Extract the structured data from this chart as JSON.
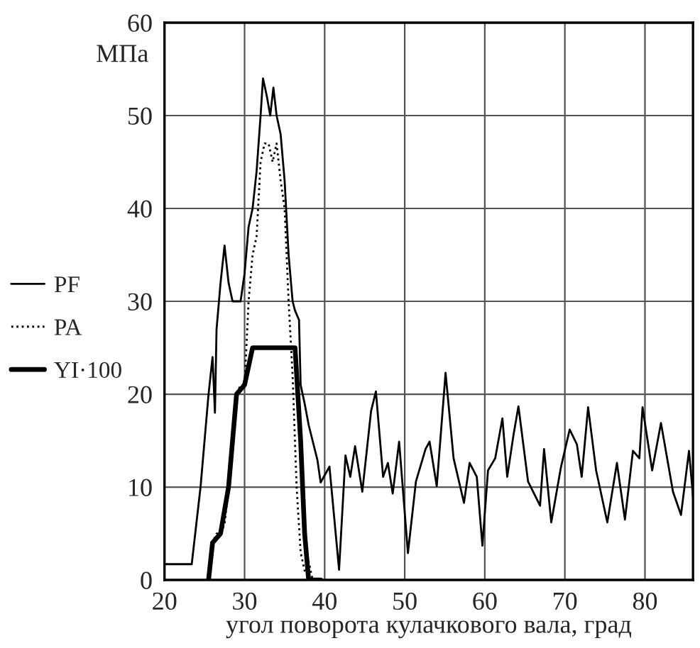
{
  "chart_data": {
    "type": "line",
    "xlabel": "угол поворота кулачкового вала, град",
    "ylabel": "МПа",
    "xlim": [
      20,
      86
    ],
    "xticks": [
      20,
      30,
      40,
      50,
      60,
      70,
      80
    ],
    "ylim": [
      0,
      60
    ],
    "yticks": [
      0,
      10,
      20,
      30,
      40,
      50,
      60
    ],
    "grid": true,
    "legend": "left",
    "series": [
      {
        "name": "PF",
        "color": "#000000",
        "line_style": "solid",
        "x": [
          20,
          23.4,
          24.5,
          25.5,
          26,
          26.3,
          26.5,
          27,
          27.5,
          28,
          28.5,
          29.5,
          30,
          30.5,
          31,
          31.5,
          32,
          32.3,
          32.8,
          33.2,
          33.6,
          34,
          34.5,
          35,
          35.5,
          36,
          36.3,
          36.8,
          37,
          37.5,
          38,
          39.1,
          39.5,
          40.6,
          41.8,
          42.6,
          43.2,
          43.8,
          44.7,
          45.8,
          46.4,
          47.3,
          47.9,
          48.5,
          49.3,
          50.4,
          51.4,
          52.6,
          53.1,
          54,
          55.1,
          56.1,
          57.4,
          58.1,
          59,
          59.7,
          60.4,
          61.3,
          62.2,
          62.8,
          63.6,
          64.2,
          65.4,
          66.9,
          67.4,
          68.3,
          69.5,
          70.6,
          71.5,
          72.1,
          72.9,
          73.9,
          75.3,
          76.5,
          77.5,
          78.5,
          79.3,
          79.7,
          80.9,
          82,
          83.5,
          84.5,
          85.5,
          86
        ],
        "values": [
          1.7,
          1.7,
          10,
          20,
          24,
          18,
          27,
          32,
          36,
          32,
          30,
          30,
          33,
          38,
          40,
          44,
          50,
          54,
          52,
          50,
          53,
          50,
          48,
          43,
          35,
          30,
          29,
          28,
          21,
          19,
          16.7,
          12.9,
          10.5,
          12.2,
          1.1,
          13.4,
          11.1,
          14.4,
          9.5,
          18.2,
          20.3,
          11.1,
          12.6,
          9.3,
          14.9,
          2.9,
          10.6,
          14.1,
          14.9,
          10.1,
          22.3,
          13.1,
          8.3,
          12.6,
          11.1,
          3.7,
          11.8,
          13.1,
          17.4,
          11.1,
          15.7,
          18.7,
          10.6,
          8,
          14.1,
          6.2,
          12.1,
          16.2,
          14.6,
          11.1,
          18.6,
          11.8,
          6.2,
          12.6,
          6.5,
          13.9,
          13.1,
          18.6,
          11.8,
          16.9,
          9.5,
          7,
          13.9,
          9
        ]
      },
      {
        "name": "PA",
        "color": "#000000",
        "line_style": "dotted",
        "x": [
          25.5,
          26,
          26.5,
          27,
          27.5,
          28,
          28.5,
          29,
          29.5,
          30,
          30.5,
          31,
          31.5,
          32,
          32.5,
          33,
          33.5,
          34,
          34.5,
          35,
          35.5,
          36,
          36.5,
          37,
          37.5,
          38,
          38.5,
          39.5
        ],
        "values": [
          0,
          4,
          5,
          5,
          6,
          10,
          16,
          20,
          21,
          21,
          30,
          35,
          37,
          45,
          47,
          47,
          45,
          47,
          43,
          40,
          30,
          22,
          10,
          3,
          1,
          2,
          0,
          0
        ]
      },
      {
        "name": "YI·100",
        "color": "#000000",
        "line_style": "solid",
        "x": [
          25.5,
          26,
          27,
          28,
          29,
          30,
          30.5,
          31,
          36.3,
          37,
          37.5,
          38,
          39.5
        ],
        "values": [
          0,
          4,
          5,
          10,
          20,
          21,
          23,
          25,
          25,
          15,
          5,
          0,
          0
        ]
      }
    ]
  }
}
